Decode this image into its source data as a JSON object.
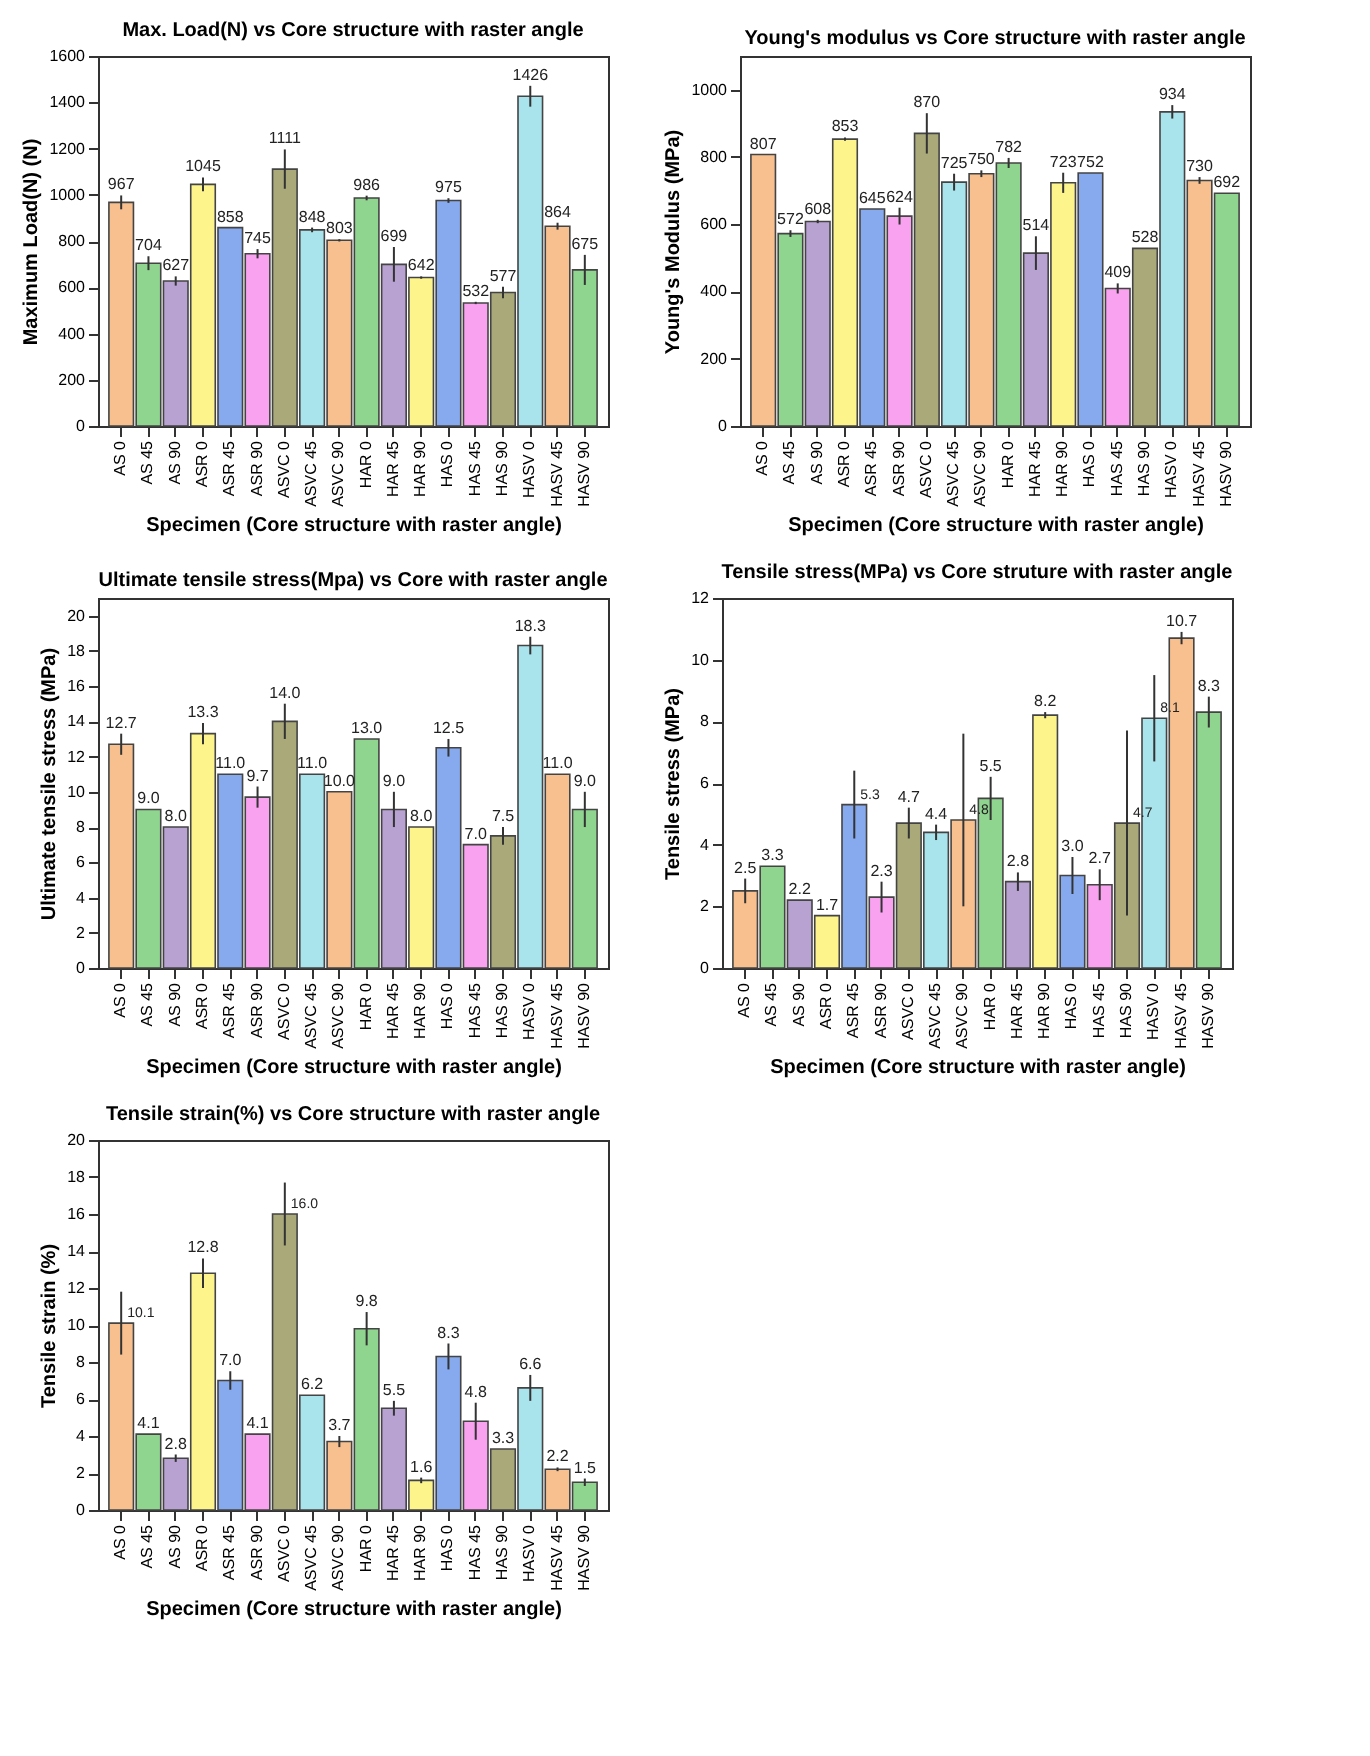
{
  "chart_data": [
    {
      "type": "bar",
      "title": "Max. Load(N) vs Core structure with raster angle",
      "xlabel": "Specimen (Core structure with raster angle)",
      "ylabel": "Maximum Load(N) (N)",
      "categories": [
        "AS 0",
        "AS 45",
        "AS 90",
        "ASR 0",
        "ASR 45",
        "ASR 90",
        "ASVC 0",
        "ASVC 45",
        "ASVC 90",
        "HAR 0",
        "HAR 45",
        "HAR 90",
        "HAS 0",
        "HAS 45",
        "HAS 90",
        "HASV 0",
        "HASV 45",
        "HASV 90"
      ],
      "values": [
        967,
        704,
        627,
        1045,
        858,
        745,
        1111,
        848,
        803,
        986,
        699,
        642,
        975,
        532,
        577,
        1426,
        864,
        675
      ],
      "errors": [
        30,
        30,
        20,
        30,
        null,
        20,
        85,
        10,
        5,
        10,
        75,
        5,
        10,
        5,
        25,
        45,
        15,
        65
      ],
      "colors": [
        "#f9c08f",
        "#8fd48f",
        "#b8a2d2",
        "#fdf58c",
        "#87a9ee",
        "#f9a2f0",
        "#a9a97a",
        "#a9e3ec",
        "#f9c08f",
        "#8fd48f",
        "#b8a2d2",
        "#fdf58c",
        "#87a9ee",
        "#f9a2f0",
        "#a9a97a",
        "#a9e3ec",
        "#f9c08f",
        "#8fd48f"
      ],
      "ylim": [
        0,
        1600
      ],
      "yticks": [
        0,
        200,
        400,
        600,
        800,
        1000,
        1200,
        1400,
        1600
      ],
      "data_labels": true
    },
    {
      "type": "bar",
      "title": "Young's modulus vs Core structure with raster angle",
      "xlabel": "Specimen (Core structure with raster angle)",
      "ylabel": "Young's Modulus (MPa)",
      "categories": [
        "AS 0",
        "AS 45",
        "AS 90",
        "ASR 0",
        "ASR 45",
        "ASR 90",
        "ASVC 0",
        "ASVC 45",
        "ASVC 90",
        "HAR 0",
        "HAR 45",
        "HAR 90",
        "HAS 0",
        "HAS 45",
        "HAS 90",
        "HASV 0",
        "HASV 45",
        "HASV 90"
      ],
      "values": [
        807,
        572,
        608,
        853,
        645,
        624,
        870,
        725,
        750,
        782,
        514,
        723,
        752,
        409,
        528,
        934,
        730,
        692
      ],
      "errors": [
        null,
        10,
        5,
        5,
        null,
        25,
        60,
        25,
        10,
        15,
        50,
        30,
        null,
        15,
        null,
        20,
        10,
        null
      ],
      "colors": [
        "#f9c08f",
        "#8fd48f",
        "#b8a2d2",
        "#fdf58c",
        "#87a9ee",
        "#f9a2f0",
        "#a9a97a",
        "#a9e3ec",
        "#f9c08f",
        "#8fd48f",
        "#b8a2d2",
        "#fdf58c",
        "#87a9ee",
        "#f9a2f0",
        "#a9a97a",
        "#a9e3ec",
        "#f9c08f",
        "#8fd48f"
      ],
      "ylim": [
        0,
        1100
      ],
      "yticks": [
        0,
        200,
        400,
        600,
        800,
        1000
      ],
      "data_labels": true
    },
    {
      "type": "bar",
      "title": "Ultimate tensile stress(Mpa) vs Core with raster angle",
      "xlabel": "Specimen (Core structure with raster angle)",
      "ylabel": "Ultimate tensile stress (MPa)",
      "categories": [
        "AS 0",
        "AS 45",
        "AS 90",
        "ASR 0",
        "ASR 45",
        "ASR 90",
        "ASVC 0",
        "ASVC 45",
        "ASVC 90",
        "HAR 0",
        "HAR 45",
        "HAR 90",
        "HAS 0",
        "HAS 45",
        "HAS 90",
        "HASV 0",
        "HASV 45",
        "HASV 90"
      ],
      "values": [
        12.7,
        9,
        8,
        13.3,
        11,
        9.7,
        14,
        11,
        10,
        13,
        9,
        8,
        12.5,
        7,
        7.5,
        18.3,
        11,
        9
      ],
      "value_labels": [
        "12.7",
        "9.0",
        "8.0",
        "13.3",
        "11.0",
        "9.7",
        "14.0",
        "11.0",
        "10.0",
        "13.0",
        "9.0",
        "8.0",
        "12.5",
        "7.0",
        "7.5",
        "18.3",
        "11.0",
        "9.0"
      ],
      "errors": [
        0.6,
        null,
        null,
        0.6,
        null,
        0.6,
        1,
        null,
        null,
        null,
        1,
        null,
        0.5,
        null,
        0.5,
        0.5,
        null,
        1
      ],
      "colors": [
        "#f9c08f",
        "#8fd48f",
        "#b8a2d2",
        "#fdf58c",
        "#87a9ee",
        "#f9a2f0",
        "#a9a97a",
        "#a9e3ec",
        "#f9c08f",
        "#8fd48f",
        "#b8a2d2",
        "#fdf58c",
        "#87a9ee",
        "#f9a2f0",
        "#a9a97a",
        "#a9e3ec",
        "#f9c08f",
        "#8fd48f"
      ],
      "ylim": [
        0,
        21
      ],
      "yticks": [
        0,
        2,
        4,
        6,
        8,
        10,
        12,
        14,
        16,
        18,
        20
      ]
    },
    {
      "type": "bar",
      "title": "Tensile stress(MPa) vs Core struture with raster angle",
      "xlabel": "Specimen (Core structure with raster angle)",
      "ylabel": "Tensile stress  (MPa)",
      "categories": [
        "AS 0",
        "AS 45",
        "AS 90",
        "ASR 0",
        "ASR 45",
        "ASR 90",
        "ASVC 0",
        "ASVC 45",
        "ASVC 90",
        "HAR 0",
        "HAR 45",
        "HAR 90",
        "HAS 0",
        "HAS 45",
        "HAS 90",
        "HASV 0",
        "HASV 45",
        "HASV 90"
      ],
      "values": [
        2.5,
        3.3,
        2.2,
        1.7,
        5.3,
        2.3,
        4.7,
        4.4,
        4.8,
        5.5,
        2.8,
        8.2,
        3,
        2.7,
        4.7,
        8.1,
        10.7,
        8.3
      ],
      "value_labels": [
        "2.5",
        "3.3",
        "2.2",
        "1.7",
        "5.3",
        "2.3",
        "4.7",
        "4.4",
        "4.8",
        "5.5",
        "2.8",
        "8.2",
        "3.0",
        "2.7",
        "4.7",
        "8.1",
        "10.7",
        "8.3"
      ],
      "errors": [
        0.4,
        null,
        null,
        null,
        1.1,
        0.5,
        0.5,
        0.25,
        2.8,
        0.7,
        0.3,
        0.1,
        0.6,
        0.5,
        3,
        1.4,
        0.2,
        0.5
      ],
      "colors": [
        "#f9c08f",
        "#8fd48f",
        "#b8a2d2",
        "#fdf58c",
        "#87a9ee",
        "#f9a2f0",
        "#a9a97a",
        "#a9e3ec",
        "#f9c08f",
        "#8fd48f",
        "#b8a2d2",
        "#fdf58c",
        "#87a9ee",
        "#f9a2f0",
        "#a9a97a",
        "#a9e3ec",
        "#f9c08f",
        "#8fd48f"
      ],
      "ylim": [
        0,
        12
      ],
      "yticks": [
        0,
        2,
        4,
        6,
        8,
        10,
        12
      ]
    },
    {
      "type": "bar",
      "title": "Tensile strain(%) vs Core structure with raster angle",
      "xlabel": "Specimen (Core structure with raster angle)",
      "ylabel": "Tensile strain (%)",
      "categories": [
        "AS 0",
        "AS 45",
        "AS 90",
        "ASR 0",
        "ASR 45",
        "ASR 90",
        "ASVC 0",
        "ASVC 45",
        "ASVC 90",
        "HAR 0",
        "HAR 45",
        "HAR 90",
        "HAS 0",
        "HAS 45",
        "HAS 90",
        "HASV 0",
        "HASV 45",
        "HASV 90"
      ],
      "values": [
        10.1,
        4.1,
        2.8,
        12.8,
        7,
        4.1,
        16,
        6.2,
        3.7,
        9.8,
        5.5,
        1.6,
        8.3,
        4.8,
        3.3,
        6.6,
        2.2,
        1.5
      ],
      "value_labels": [
        "10.1",
        "4.1",
        "2.8",
        "12.8",
        "7.0",
        "4.1",
        "16.0",
        "6.2",
        "3.7",
        "9.8",
        "5.5",
        "1.6",
        "8.3",
        "4.8",
        "3.3",
        "6.6",
        "2.2",
        "1.5"
      ],
      "errors": [
        1.7,
        null,
        0.2,
        0.8,
        0.5,
        null,
        1.7,
        null,
        0.3,
        0.9,
        0.4,
        0.15,
        0.7,
        1,
        null,
        0.7,
        0.1,
        0.2
      ],
      "colors": [
        "#f9c08f",
        "#8fd48f",
        "#b8a2d2",
        "#fdf58c",
        "#87a9ee",
        "#f9a2f0",
        "#a9a97a",
        "#a9e3ec",
        "#f9c08f",
        "#8fd48f",
        "#b8a2d2",
        "#fdf58c",
        "#87a9ee",
        "#f9a2f0",
        "#a9a97a",
        "#a9e3ec",
        "#f9c08f",
        "#8fd48f"
      ],
      "ylim": [
        0,
        20
      ],
      "yticks": [
        0,
        2,
        4,
        6,
        8,
        10,
        12,
        14,
        16,
        18,
        20
      ]
    }
  ]
}
